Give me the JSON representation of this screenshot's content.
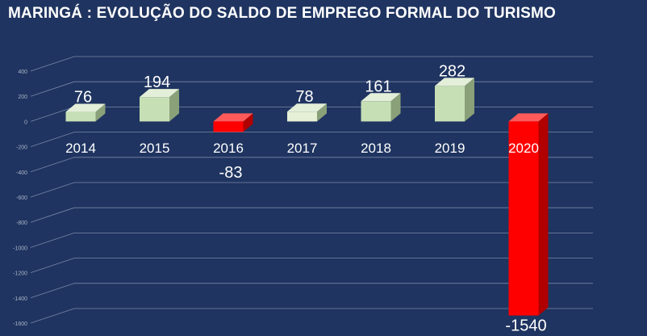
{
  "chart_data": {
    "type": "bar",
    "title": "MARINGÁ : EVOLUÇÃO DO SALDO DE EMPREGO FORMAL DO TURISMO",
    "categories": [
      "2014",
      "2015",
      "2016",
      "2017",
      "2018",
      "2019",
      "2020"
    ],
    "values": [
      76,
      194,
      -83,
      78,
      161,
      282,
      -1540
    ],
    "value_labels": [
      "76",
      "194",
      "-83",
      "78",
      "161",
      "282",
      "-1540"
    ],
    "y_ticks": [
      "400",
      "200",
      "0",
      "-200",
      "-400",
      "-600",
      "-800",
      "-1000",
      "-1200",
      "-1400",
      "-1600"
    ],
    "ylim": [
      -1600,
      400
    ],
    "grid": true,
    "colors": {
      "background": "#1f3460",
      "positive": "#c6dfb5",
      "positive_2017": "#e6f0d6",
      "negative": "#ff0000",
      "grid": "#8a97b3"
    }
  }
}
